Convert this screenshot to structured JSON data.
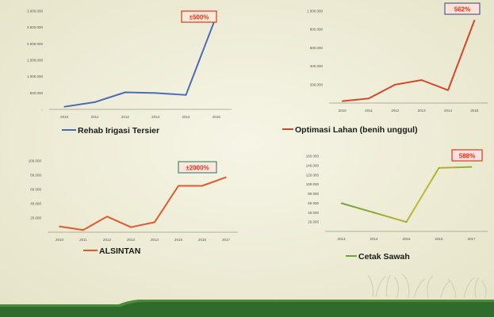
{
  "colors": {
    "background": "#f1f0dc",
    "axis": "#9a9a8a",
    "badge_text": "#d63a1e",
    "band_green": "#2f6b2a"
  },
  "chart_data": [
    {
      "type": "line",
      "badge": "±500%",
      "badge_border": "#d63a1e",
      "badge_fill": "#fde9d8",
      "x": [
        "2010",
        "2011",
        "2012",
        "2013",
        "2014",
        "2015"
      ],
      "y_ticks": [
        "-",
        "500.000",
        "1.000.000",
        "1.500.000",
        "2.000.000",
        "2.500.000",
        "3.000.000"
      ],
      "ylim": [
        0,
        3000000
      ],
      "series": [
        {
          "name": "Rehab Irigasi Tersier",
          "color": "#4a6bb5",
          "values": [
            80000,
            220000,
            520000,
            500000,
            440000,
            2850000
          ]
        }
      ]
    },
    {
      "type": "line",
      "badge": "562%",
      "badge_border": "#4a5e9e",
      "badge_fill": "#fde2d5",
      "x": [
        "2010",
        "2011",
        "2012",
        "2013",
        "2014",
        "2015"
      ],
      "y_ticks": [
        "200.000",
        "400.000",
        "600.000",
        "800.000",
        "1.000.000"
      ],
      "ylim": [
        0,
        1000000
      ],
      "series": [
        {
          "name": "Optimasi Lahan (benih unggul)",
          "color": "#d8452a",
          "values": [
            20000,
            50000,
            200000,
            250000,
            140000,
            900000
          ]
        }
      ]
    },
    {
      "type": "line",
      "badge": "±2000%",
      "badge_border": "#3f8a78",
      "badge_fill": "#fde6dc",
      "x": [
        "2010",
        "2011",
        "2012",
        "2013",
        "2014",
        "2015",
        "2016",
        "2017"
      ],
      "y_ticks": [
        "20.000",
        "40.000",
        "60.000",
        "80.000",
        "100.000"
      ],
      "ylim": [
        0,
        100000
      ],
      "series": [
        {
          "name": "ALSINTAN",
          "color": "#e05a30",
          "values": [
            8000,
            3000,
            22000,
            7000,
            14000,
            65000,
            65000,
            77000
          ]
        }
      ]
    },
    {
      "type": "line",
      "badge": "588%",
      "badge_border": "#d63a1e",
      "badge_fill": "#fde0e0",
      "x": [
        "2013",
        "2014",
        "2015",
        "2016",
        "2017"
      ],
      "y_ticks": [
        "20.000",
        "40.000",
        "60.000",
        "80.000",
        "100.000",
        "120.000",
        "140.000",
        "160.000"
      ],
      "ylim": [
        0,
        160000
      ],
      "series": [
        {
          "name": "Cetak Sawah",
          "color": "#6ea53a",
          "values": [
            60000,
            40000,
            20000,
            135000,
            137000
          ]
        }
      ]
    }
  ]
}
